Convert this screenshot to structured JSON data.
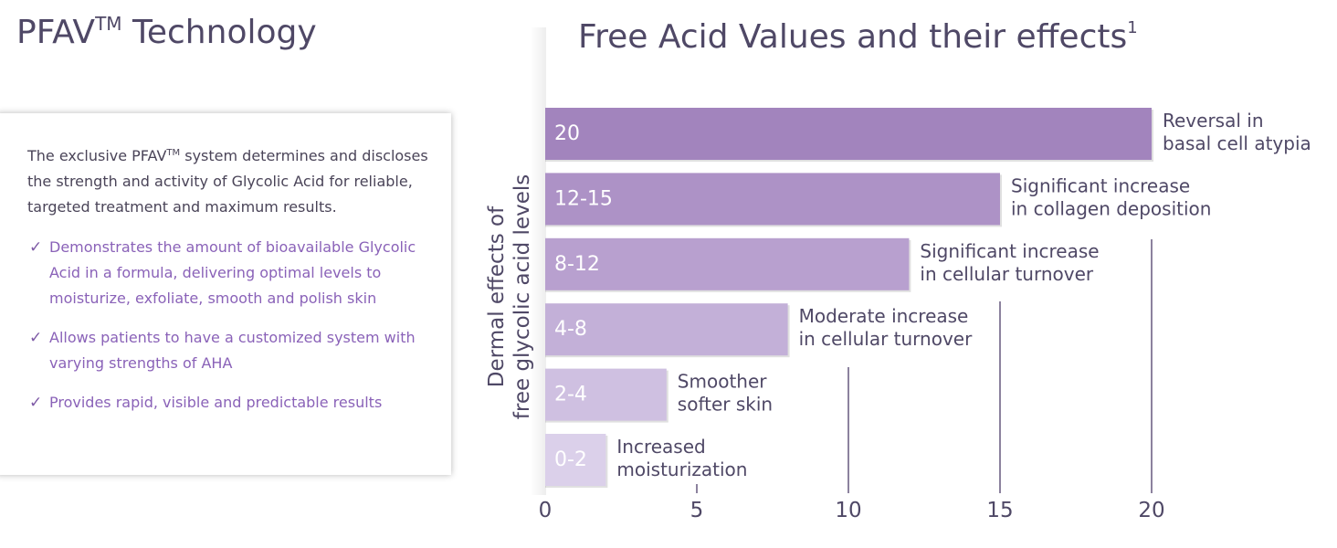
{
  "page": {
    "title": "PFAV",
    "title_tm": "TM",
    "title_rest": " Technology"
  },
  "info_card": {
    "intro_a": "The exclusive PFAV",
    "intro_tm": "TM",
    "intro_b": " system determines and discloses the strength and activity of Glycolic Acid for reliable, targeted treatment and maximum results.",
    "check_icon": "✓",
    "bullets": [
      "Demonstrates the amount of bioavailable Glycolic Acid in a formula, delivering optimal levels to moisturize, exfoliate, smooth and polish skin",
      "Allows patients to have a customized system with varying strengths of AHA",
      "Provides rapid, visible and predictable results"
    ]
  },
  "chart_data": {
    "type": "bar",
    "orientation": "horizontal",
    "title": "Free Acid Values and their effects",
    "title_footnote": "1",
    "ylabel_lines": [
      "Dermal effects of",
      "free glycolic acid levels"
    ],
    "xlabel": "",
    "xlim": [
      0,
      20
    ],
    "xticks": [
      "0",
      "5",
      "10",
      "15",
      "20"
    ],
    "categories": [
      "20",
      "12-15",
      "8-12",
      "4-8",
      "2-4",
      "0-2"
    ],
    "values": [
      20,
      15,
      12,
      8,
      4,
      2
    ],
    "annotations": [
      [
        "Reversal in",
        "basal cell atypia"
      ],
      [
        "Significant increase",
        "in collagen deposition"
      ],
      [
        "Significant increase",
        "in cellular turnover"
      ],
      [
        "Moderate increase",
        "in cellular turnover"
      ],
      [
        "Smoother",
        "softer skin"
      ],
      [
        "Increased",
        "moisturization"
      ]
    ],
    "bar_colors": [
      "#a284bd",
      "#ad92c6",
      "#b8a0cf",
      "#c3b0d8",
      "#cfc0e1",
      "#dbd0ea"
    ],
    "grid": "vertical gridlines at 5, 10, 15, 20"
  }
}
